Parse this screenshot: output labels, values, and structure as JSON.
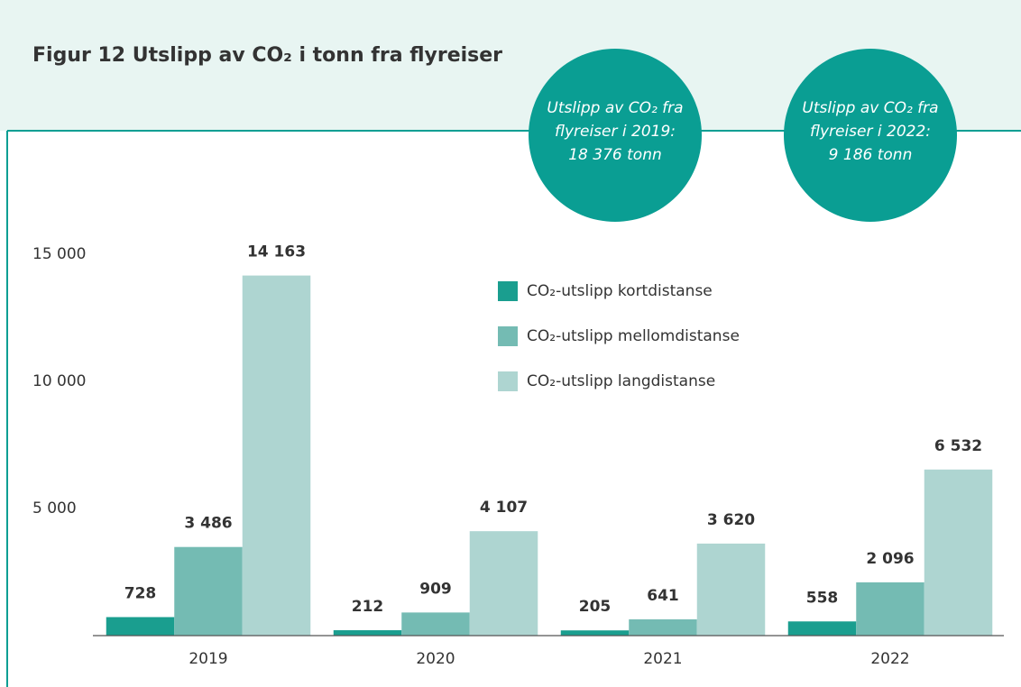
{
  "chart_data": {
    "type": "bar",
    "title": "Figur 12   Utslipp av CO₂ i tonn fra flyreiser",
    "annotations": [
      {
        "lines": [
          "Utslipp av CO₂ fra",
          "flyreiser i 2019:",
          "18 376 tonn"
        ]
      },
      {
        "lines": [
          "Utslipp av CO₂ fra",
          "flyreiser i 2022:",
          "9 186 tonn"
        ]
      }
    ],
    "categories": [
      "2019",
      "2020",
      "2021",
      "2022"
    ],
    "series": [
      {
        "name": "CO₂-utslipp kortdistanse",
        "color": "#1a9e8f",
        "values": [
          728,
          212,
          205,
          558
        ],
        "value_labels": [
          "728",
          "212",
          "205",
          "558"
        ]
      },
      {
        "name": "CO₂-utslipp mellomdistanse",
        "color": "#74bbb3",
        "values": [
          3486,
          909,
          641,
          2096
        ],
        "value_labels": [
          "3 486",
          "909",
          "641",
          "2 096"
        ]
      },
      {
        "name": "CO₂-utslipp langdistanse",
        "color": "#aed5d1",
        "values": [
          14163,
          4107,
          3620,
          6532
        ],
        "value_labels": [
          "14 163",
          "4 107",
          "3 620",
          "6 532"
        ]
      }
    ],
    "ylim": [
      0,
      15000
    ],
    "yticks": [
      {
        "value": 5000,
        "label": "5 000"
      },
      {
        "value": 10000,
        "label": "10 000"
      },
      {
        "value": 15000,
        "label": "15 000"
      }
    ],
    "grid": false
  }
}
